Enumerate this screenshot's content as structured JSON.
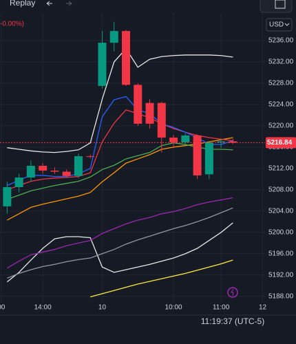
{
  "toolbar": {
    "replay": "Replay"
  },
  "chart_data": {
    "type": "candlestick",
    "change_text": "-0.00%)",
    "currency": "USD",
    "clock": "11:19:37 (UTC-5)",
    "x": [
      0,
      1,
      2,
      3,
      4,
      5,
      6,
      7,
      8,
      9,
      10,
      11,
      12,
      13,
      14,
      15,
      16,
      17,
      18,
      19
    ],
    "open": [
      5204.9,
      5208.5,
      5210.3,
      5212.5,
      5211.6,
      5211.4,
      5210.6,
      5214.3,
      5227.5,
      5235.6,
      5237.8,
      5227.7,
      5224.3,
      5224.3,
      5217.8,
      5216.9,
      5218.2,
      5210.9,
      5216.9,
      5217.1
    ],
    "high": [
      5209.5,
      5211,
      5213.5,
      5213,
      5212.2,
      5211.8,
      5214.8,
      5214.6,
      5237.8,
      5239.5,
      5238,
      5228,
      5225,
      5224.5,
      5218.3,
      5218.6,
      5218.4,
      5217,
      5217.5,
      5217.6
    ],
    "low": [
      5203.5,
      5207.5,
      5209.5,
      5211,
      5211,
      5210.4,
      5210.2,
      5213.9,
      5227,
      5234,
      5227.5,
      5220,
      5219.5,
      5215,
      5216,
      5216.4,
      5210,
      5210,
      5215.8,
      5216.6
    ],
    "close": [
      5208.5,
      5210.3,
      5212.5,
      5211.6,
      5211.4,
      5210.6,
      5214.3,
      5214.2,
      5235.6,
      5237.8,
      5227.7,
      5220.4,
      5220.4,
      5217.8,
      5216.9,
      5218.2,
      5210.7,
      5216.9,
      5217.1,
      5216.84
    ],
    "up_color": "#089981",
    "down_color": "#f23645",
    "series": [
      {
        "color": "#e8e8e8",
        "values": [
          5215.9,
          5215.6,
          5215.3,
          5215.1,
          5215,
          5215.2,
          5215.5,
          5216.8,
          5225,
          5232,
          5234.5,
          5231,
          5232.5,
          5233,
          5233.2,
          5233.3,
          5233.3,
          5233.3,
          5233.2,
          5232.9
        ]
      },
      {
        "color": "#e8e8e8",
        "values": [
          5190.7,
          5192.5,
          5194.8,
          5197,
          5198.8,
          5199.2,
          5199.2,
          5199,
          5193.5,
          5192.5,
          5193,
          5193.5,
          5194,
          5194.6,
          5195.2,
          5196,
          5197,
          5198.5,
          5200,
          5201.8
        ]
      },
      {
        "color": "#9c27b0",
        "values": [
          5193.3,
          5194.6,
          5195.8,
          5196.3,
          5196.8,
          5197.5,
          5198,
          5198.5,
          5199.8,
          5200.7,
          5201.6,
          5202.3,
          5202.8,
          5203.5,
          5203.9,
          5204.5,
          5205.2,
          5205.7,
          5206.1,
          5206.5
        ]
      },
      {
        "color": "#9598a1",
        "values": [
          5191.4,
          5192.3,
          5193,
          5193.6,
          5194,
          5194.5,
          5194.9,
          5195.2,
          5196,
          5196.8,
          5197.8,
          5198.6,
          5199.3,
          5200,
          5200.7,
          5201.3,
          5202,
          5202.8,
          5203.7,
          5204.6
        ]
      },
      {
        "color": "#ffeb3b",
        "values": [
          null,
          null,
          null,
          null,
          null,
          null,
          null,
          5187.9,
          5188.5,
          5189.1,
          5189.7,
          5190.3,
          5190.8,
          5191.3,
          5191.8,
          5192.3,
          5192.9,
          5193.5,
          5194.1,
          5194.8
        ]
      },
      {
        "color": "#ff9800",
        "values": [
          5202.3,
          5203.5,
          5204.7,
          5205.3,
          5205.8,
          5206.3,
          5206.8,
          5207.5,
          5209.5,
          5211.2,
          5213,
          5213.8,
          5214.6,
          5215.6,
          5216,
          5216.3,
          5216.6,
          5217,
          5217.4,
          5217.8
        ]
      },
      {
        "color": "#4caf50",
        "values": [
          5206.2,
          5207,
          5207.8,
          5208.3,
          5208.8,
          5209.2,
          5209.6,
          5210.4,
          5211.8,
          5212.6,
          5213.8,
          5214.4,
          5215,
          5216.3,
          5216.8,
          5216.5,
          5216,
          5215.6,
          5215.6,
          5215.5
        ]
      },
      {
        "color": "#f23645",
        "values": [
          5208,
          5208.8,
          5209.6,
          5210,
          5210.2,
          5210.3,
          5210.5,
          5211.2,
          5217,
          5220.5,
          5223,
          5222.3,
          5221.5,
          5220.4,
          5219.5,
          5218.8,
          5218.2,
          5217.8,
          5217.5,
          5217.2
        ]
      },
      {
        "color": "#2962ff",
        "values": [
          5208.8,
          5209.8,
          5210.7,
          5210.7,
          5210.5,
          5210.5,
          5211,
          5212,
          5221.7,
          5224.9,
          5225.5,
          5223,
          5222.3,
          5220.4,
          5219.7,
          5218.8,
          5217.8,
          5216.5,
          5216.5,
          5217.2
        ]
      }
    ],
    "last_price": 5216.84,
    "xlim": [
      -0.6,
      21.7
    ],
    "xticks": [
      {
        "value": -0.5,
        "label": "00"
      },
      {
        "value": 3,
        "label": "14:00"
      },
      {
        "value": 8,
        "label": "10"
      },
      {
        "value": 14,
        "label": "10:00"
      },
      {
        "value": 18,
        "label": "11:00"
      },
      {
        "value": 21.5,
        "label": "12"
      }
    ],
    "ylim": [
      5186.8,
      5241.3
    ],
    "yticks": [
      {
        "value": 5188,
        "label": "5188.00"
      },
      {
        "value": 5192,
        "label": "5192.00"
      },
      {
        "value": 5196,
        "label": "5196.00"
      },
      {
        "value": 5200,
        "label": "5200.00"
      },
      {
        "value": 5204,
        "label": "5204.00"
      },
      {
        "value": 5208,
        "label": "5208.00"
      },
      {
        "value": 5212,
        "label": "5212.00"
      },
      {
        "value": 5216,
        "label": "5216.00"
      },
      {
        "value": 5220,
        "label": "5220.00"
      },
      {
        "value": 5224,
        "label": "5224.00"
      },
      {
        "value": 5228,
        "label": "5228.00"
      },
      {
        "value": 5232,
        "label": "5232.00"
      },
      {
        "value": 5236,
        "label": "5236.00"
      }
    ],
    "grid": true
  }
}
